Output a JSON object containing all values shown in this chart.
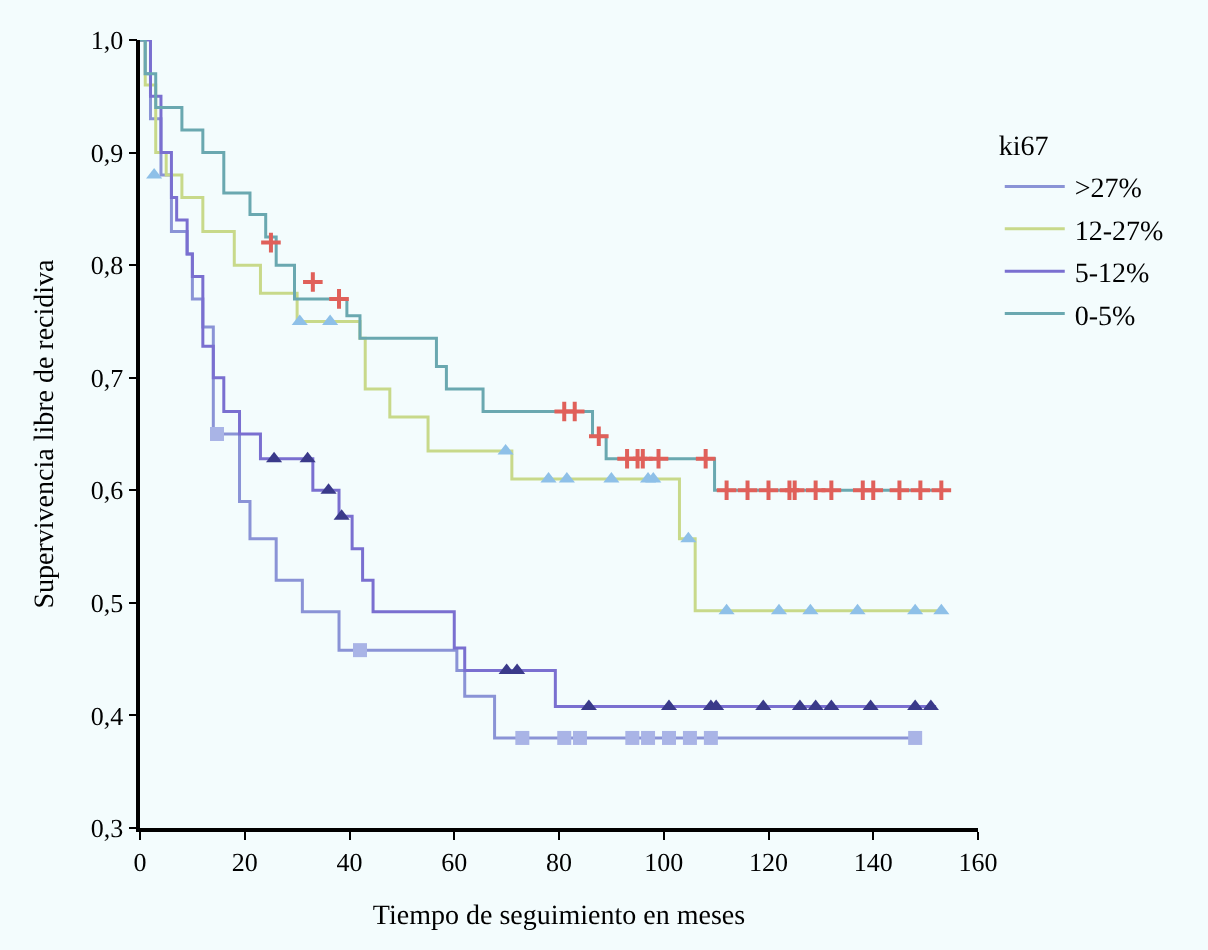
{
  "chart_data": {
    "type": "step",
    "xlabel": "Tiempo de seguimiento en meses",
    "ylabel": "Supervivencia libre de recidiva",
    "legend_title": "ki67",
    "legend": "right",
    "xlim": [
      0,
      160
    ],
    "xticks": [
      0,
      20,
      40,
      60,
      80,
      100,
      120,
      140,
      160
    ],
    "ylim": [
      0.3,
      1.0
    ],
    "yticks": [
      {
        "value": 0.3,
        "label": "0,3"
      },
      {
        "value": 0.4,
        "label": "0,4"
      },
      {
        "value": 0.5,
        "label": "0,5"
      },
      {
        "value": 0.6,
        "label": "0,6"
      },
      {
        "value": 0.7,
        "label": "0,7"
      },
      {
        "value": 0.8,
        "label": "0,8"
      },
      {
        "value": 0.9,
        "label": "0,9"
      },
      {
        "value": 1.0,
        "label": "1,0"
      }
    ],
    "grid": false,
    "series": [
      {
        "name": ">27%",
        "color": "#8a93d6",
        "marker": "none",
        "x": [
          0,
          1,
          2,
          4,
          6,
          9,
          10,
          12,
          14,
          19,
          21,
          26,
          31,
          38,
          60.5,
          62,
          67.7,
          149
        ],
        "values": [
          1.0,
          0.97,
          0.93,
          0.88,
          0.83,
          0.81,
          0.77,
          0.745,
          0.65,
          0.59,
          0.557,
          0.52,
          0.492,
          0.458,
          0.44,
          0.417,
          0.38,
          0.38
        ]
      },
      {
        "color": "#a9b4e6",
        "type": "scatter",
        "marker": "square",
        "x": [
          14.7,
          42,
          73,
          81,
          84,
          94,
          97,
          101,
          105,
          109,
          148
        ],
        "values": [
          0.65,
          0.458,
          0.38,
          0.38,
          0.38,
          0.38,
          0.38,
          0.38,
          0.38,
          0.38,
          0.38
        ]
      },
      {
        "name": "12-27%",
        "color": "#c8d98a",
        "marker": "none",
        "x": [
          0,
          1,
          3,
          5,
          8,
          12,
          18,
          23,
          30,
          42,
          43,
          47.7,
          55,
          71,
          103,
          106,
          153
        ],
        "values": [
          1.0,
          0.96,
          0.9,
          0.88,
          0.86,
          0.83,
          0.8,
          0.775,
          0.75,
          0.735,
          0.69,
          0.665,
          0.635,
          0.61,
          0.557,
          0.493,
          0.493
        ]
      },
      {
        "color": "#8ec0e8",
        "type": "scatter",
        "marker": "triangle",
        "x": [
          2.7,
          30.5,
          36.3,
          69.8,
          78,
          81.5,
          90,
          97,
          98,
          104.7,
          112,
          122,
          128,
          137,
          148,
          153
        ],
        "values": [
          0.88,
          0.75,
          0.75,
          0.635,
          0.61,
          0.61,
          0.61,
          0.61,
          0.61,
          0.557,
          0.493,
          0.493,
          0.493,
          0.493,
          0.493,
          0.493
        ]
      },
      {
        "name": "5-12%",
        "color": "#7a6fd0",
        "marker": "none",
        "x": [
          0,
          2,
          4,
          6,
          7,
          9,
          10,
          12,
          14,
          16,
          19,
          23,
          33,
          38,
          40.5,
          42.5,
          44.5,
          60,
          62,
          79.3,
          152
        ],
        "values": [
          1.0,
          0.95,
          0.9,
          0.86,
          0.84,
          0.81,
          0.79,
          0.728,
          0.7,
          0.67,
          0.65,
          0.628,
          0.6,
          0.577,
          0.548,
          0.52,
          0.492,
          0.46,
          0.44,
          0.408,
          0.408
        ]
      },
      {
        "color": "#3a3a8a",
        "type": "scatter",
        "marker": "triangle",
        "x": [
          25.6,
          32,
          36,
          38.5,
          70,
          72,
          85.7,
          101,
          109,
          110,
          119,
          126,
          129,
          132,
          139.5,
          148,
          151
        ],
        "values": [
          0.628,
          0.628,
          0.6,
          0.577,
          0.44,
          0.44,
          0.408,
          0.408,
          0.408,
          0.408,
          0.408,
          0.408,
          0.408,
          0.408,
          0.408,
          0.408,
          0.408
        ]
      },
      {
        "name": "0-5%",
        "color": "#6aa8b0",
        "marker": "none",
        "x": [
          0,
          1,
          3,
          8,
          12,
          16,
          21,
          24,
          26,
          29.5,
          39.5,
          42,
          56.6,
          58.5,
          65.5,
          86.4,
          89,
          109.7,
          153
        ],
        "values": [
          1.0,
          0.97,
          0.94,
          0.92,
          0.9,
          0.864,
          0.845,
          0.825,
          0.8,
          0.77,
          0.755,
          0.735,
          0.71,
          0.69,
          0.67,
          0.648,
          0.628,
          0.6,
          0.6
        ]
      },
      {
        "color": "#e0605a",
        "type": "scatter",
        "marker": "cross",
        "x": [
          25,
          33,
          38,
          81,
          83,
          87.6,
          93,
          95,
          96,
          99,
          108,
          112,
          116,
          120,
          124,
          125,
          129,
          132,
          138,
          140,
          145,
          149,
          153
        ],
        "values": [
          0.82,
          0.785,
          0.77,
          0.67,
          0.67,
          0.648,
          0.628,
          0.628,
          0.628,
          0.628,
          0.628,
          0.6,
          0.6,
          0.6,
          0.6,
          0.6,
          0.6,
          0.6,
          0.6,
          0.6,
          0.6,
          0.6,
          0.6
        ]
      }
    ]
  }
}
